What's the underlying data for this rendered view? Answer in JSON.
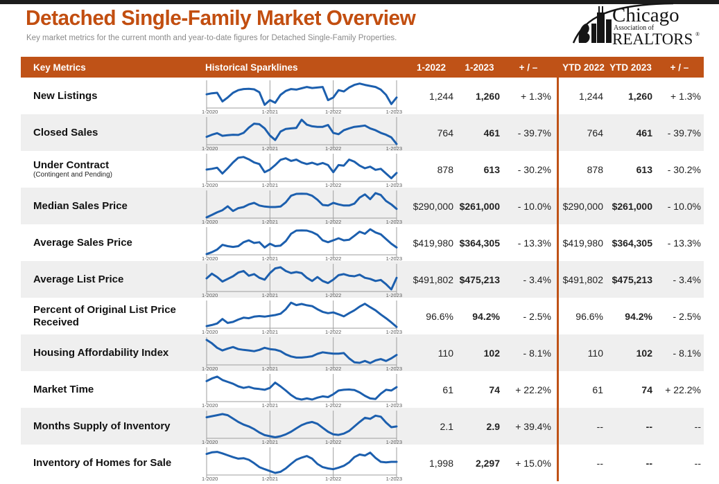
{
  "page": {
    "title": "Detached Single-Family Market Overview",
    "subtitle": "Key market metrics for the current month and year-to-date figures for Detached Single-Family Properties."
  },
  "logo": {
    "line1": "Chicago",
    "line2": "Association of",
    "line3": "REALTORS",
    "registered": "®"
  },
  "colors": {
    "title_orange": "#c24e10",
    "header_orange": "#bf5217",
    "sparkline_blue": "#1c5fae",
    "row_alt_gray": "#efefef",
    "axis_gray": "#9e9e9e",
    "axis_label_gray": "#555555",
    "top_bar": "#1c1c1c"
  },
  "table": {
    "headers": [
      "Key Metrics",
      "Historical Sparklines",
      "1-2022",
      "1-2023",
      "+ / –",
      "YTD 2022",
      "YTD 2023",
      "+ / –"
    ],
    "sparkline_axis_labels": [
      "1-2020",
      "1-2021",
      "1-2022",
      "1-2023"
    ],
    "rows": [
      {
        "metric": "New Listings",
        "note": "",
        "m2022": "1,244",
        "m2023": "1,260",
        "mchange": "+ 1.3%",
        "ytd2022": "1,244",
        "ytd2023": "1,260",
        "ytdchange": "+ 1.3%",
        "spark": [
          0.52,
          0.56,
          0.58,
          0.25,
          0.4,
          0.58,
          0.68,
          0.72,
          0.73,
          0.71,
          0.6,
          0.12,
          0.3,
          0.2,
          0.5,
          0.65,
          0.72,
          0.7,
          0.75,
          0.8,
          0.76,
          0.78,
          0.8,
          0.3,
          0.4,
          0.68,
          0.63,
          0.78,
          0.88,
          0.93,
          0.88,
          0.84,
          0.8,
          0.7,
          0.5,
          0.15,
          0.4
        ]
      },
      {
        "metric": "Closed Sales",
        "note": "",
        "m2022": "764",
        "m2023": "461",
        "mchange": "- 39.7%",
        "ytd2022": "764",
        "ytd2023": "461",
        "ytdchange": "- 39.7%",
        "spark": [
          0.3,
          0.38,
          0.44,
          0.34,
          0.36,
          0.38,
          0.37,
          0.45,
          0.65,
          0.8,
          0.78,
          0.62,
          0.35,
          0.18,
          0.5,
          0.6,
          0.62,
          0.64,
          0.95,
          0.76,
          0.7,
          0.68,
          0.68,
          0.75,
          0.45,
          0.4,
          0.55,
          0.62,
          0.68,
          0.7,
          0.73,
          0.62,
          0.55,
          0.45,
          0.38,
          0.28,
          0.03
        ]
      },
      {
        "metric": "Under Contract",
        "note": "(Contingent and Pending)",
        "m2022": "878",
        "m2023": "613",
        "mchange": "- 30.2%",
        "ytd2022": "878",
        "ytd2023": "613",
        "ytdchange": "- 30.2%",
        "spark": [
          0.45,
          0.48,
          0.52,
          0.3,
          0.5,
          0.72,
          0.9,
          0.93,
          0.84,
          0.72,
          0.66,
          0.35,
          0.45,
          0.62,
          0.82,
          0.88,
          0.78,
          0.83,
          0.72,
          0.66,
          0.71,
          0.64,
          0.7,
          0.62,
          0.35,
          0.62,
          0.6,
          0.83,
          0.75,
          0.6,
          0.5,
          0.56,
          0.44,
          0.48,
          0.3,
          0.12,
          0.32
        ]
      },
      {
        "metric": "Median Sales Price",
        "note": "",
        "m2022": "$290,000",
        "m2023": "$261,000",
        "mchange": "- 10.0%",
        "ytd2022": "$290,000",
        "ytd2023": "$261,000",
        "ytdchange": "- 10.0%",
        "spark": [
          0.03,
          0.12,
          0.22,
          0.3,
          0.45,
          0.27,
          0.38,
          0.42,
          0.52,
          0.58,
          0.48,
          0.44,
          0.42,
          0.42,
          0.44,
          0.6,
          0.85,
          0.92,
          0.93,
          0.92,
          0.85,
          0.7,
          0.5,
          0.48,
          0.58,
          0.52,
          0.48,
          0.48,
          0.55,
          0.78,
          0.9,
          0.72,
          0.95,
          0.88,
          0.65,
          0.52,
          0.35
        ]
      },
      {
        "metric": "Average Sales Price",
        "note": "",
        "m2022": "$419,980",
        "m2023": "$364,305",
        "mchange": "- 13.3%",
        "ytd2022": "$419,980",
        "ytd2023": "$364,305",
        "ytdchange": "- 13.3%",
        "spark": [
          0.03,
          0.1,
          0.2,
          0.38,
          0.33,
          0.3,
          0.33,
          0.48,
          0.55,
          0.45,
          0.48,
          0.28,
          0.42,
          0.33,
          0.35,
          0.52,
          0.8,
          0.92,
          0.93,
          0.92,
          0.86,
          0.76,
          0.55,
          0.48,
          0.55,
          0.63,
          0.55,
          0.57,
          0.72,
          0.88,
          0.8,
          0.97,
          0.85,
          0.78,
          0.6,
          0.42,
          0.28
        ]
      },
      {
        "metric": "Average List Price",
        "note": "",
        "m2022": "$491,802",
        "m2023": "$475,213",
        "mchange": "- 3.4%",
        "ytd2022": "$491,802",
        "ytd2023": "$475,213",
        "ytdchange": "- 3.4%",
        "spark": [
          0.5,
          0.68,
          0.55,
          0.38,
          0.48,
          0.58,
          0.72,
          0.78,
          0.6,
          0.66,
          0.52,
          0.45,
          0.7,
          0.88,
          0.92,
          0.78,
          0.7,
          0.74,
          0.7,
          0.52,
          0.4,
          0.55,
          0.4,
          0.32,
          0.45,
          0.62,
          0.66,
          0.6,
          0.58,
          0.64,
          0.52,
          0.48,
          0.4,
          0.44,
          0.28,
          0.08,
          0.52
        ]
      },
      {
        "metric": "Percent of Original List Price Received",
        "note": "",
        "m2022": "96.6%",
        "m2023": "94.2%",
        "mchange": "- 2.5%",
        "ytd2022": "96.6%",
        "ytd2023": "94.2%",
        "ytdchange": "- 2.5%",
        "spark": [
          0.08,
          0.12,
          0.18,
          0.35,
          0.2,
          0.24,
          0.33,
          0.4,
          0.38,
          0.44,
          0.46,
          0.44,
          0.47,
          0.5,
          0.55,
          0.72,
          0.97,
          0.88,
          0.92,
          0.87,
          0.84,
          0.72,
          0.62,
          0.57,
          0.6,
          0.53,
          0.45,
          0.57,
          0.68,
          0.82,
          0.93,
          0.8,
          0.68,
          0.52,
          0.38,
          0.22,
          0.05
        ]
      },
      {
        "metric": "Housing Affordability Index",
        "note": "",
        "m2022": "110",
        "m2023": "102",
        "mchange": "- 8.1%",
        "ytd2022": "110",
        "ytd2023": "102",
        "ytdchange": "- 8.1%",
        "spark": [
          0.95,
          0.82,
          0.65,
          0.55,
          0.62,
          0.68,
          0.6,
          0.57,
          0.55,
          0.52,
          0.57,
          0.65,
          0.6,
          0.58,
          0.52,
          0.4,
          0.32,
          0.28,
          0.28,
          0.3,
          0.33,
          0.42,
          0.48,
          0.45,
          0.43,
          0.43,
          0.45,
          0.25,
          0.1,
          0.08,
          0.15,
          0.07,
          0.17,
          0.22,
          0.15,
          0.25,
          0.38
        ]
      },
      {
        "metric": "Market Time",
        "note": "",
        "m2022": "61",
        "m2023": "74",
        "mchange": "+ 22.2%",
        "ytd2022": "61",
        "ytd2023": "74",
        "ytdchange": "+ 22.2%",
        "spark": [
          0.78,
          0.88,
          0.95,
          0.82,
          0.75,
          0.68,
          0.58,
          0.52,
          0.56,
          0.5,
          0.48,
          0.45,
          0.52,
          0.72,
          0.58,
          0.42,
          0.25,
          0.12,
          0.08,
          0.12,
          0.08,
          0.15,
          0.2,
          0.17,
          0.28,
          0.42,
          0.45,
          0.46,
          0.44,
          0.35,
          0.22,
          0.12,
          0.1,
          0.3,
          0.45,
          0.42,
          0.55
        ]
      },
      {
        "metric": "Months Supply of Inventory",
        "note": "",
        "m2022": "2.1",
        "m2023": "2.9",
        "mchange": "+ 39.4%",
        "ytd2022": "--",
        "ytd2023": "--",
        "ytdchange": "--",
        "spark": [
          0.8,
          0.84,
          0.88,
          0.92,
          0.88,
          0.75,
          0.62,
          0.52,
          0.45,
          0.35,
          0.22,
          0.12,
          0.08,
          0.04,
          0.08,
          0.15,
          0.25,
          0.38,
          0.5,
          0.58,
          0.62,
          0.55,
          0.4,
          0.25,
          0.15,
          0.13,
          0.18,
          0.28,
          0.45,
          0.62,
          0.78,
          0.74,
          0.86,
          0.82,
          0.6,
          0.42,
          0.45
        ]
      },
      {
        "metric": "Inventory of Homes for Sale",
        "note": "",
        "m2022": "1,998",
        "m2023": "2,297",
        "mchange": "+ 15.0%",
        "ytd2022": "--",
        "ytd2023": "--",
        "ytdchange": "--",
        "spark": [
          0.8,
          0.86,
          0.88,
          0.82,
          0.75,
          0.68,
          0.62,
          0.64,
          0.58,
          0.45,
          0.3,
          0.22,
          0.15,
          0.08,
          0.12,
          0.25,
          0.42,
          0.58,
          0.66,
          0.72,
          0.62,
          0.42,
          0.3,
          0.25,
          0.22,
          0.28,
          0.35,
          0.48,
          0.68,
          0.78,
          0.74,
          0.85,
          0.65,
          0.5,
          0.48,
          0.5,
          0.5
        ]
      }
    ]
  }
}
